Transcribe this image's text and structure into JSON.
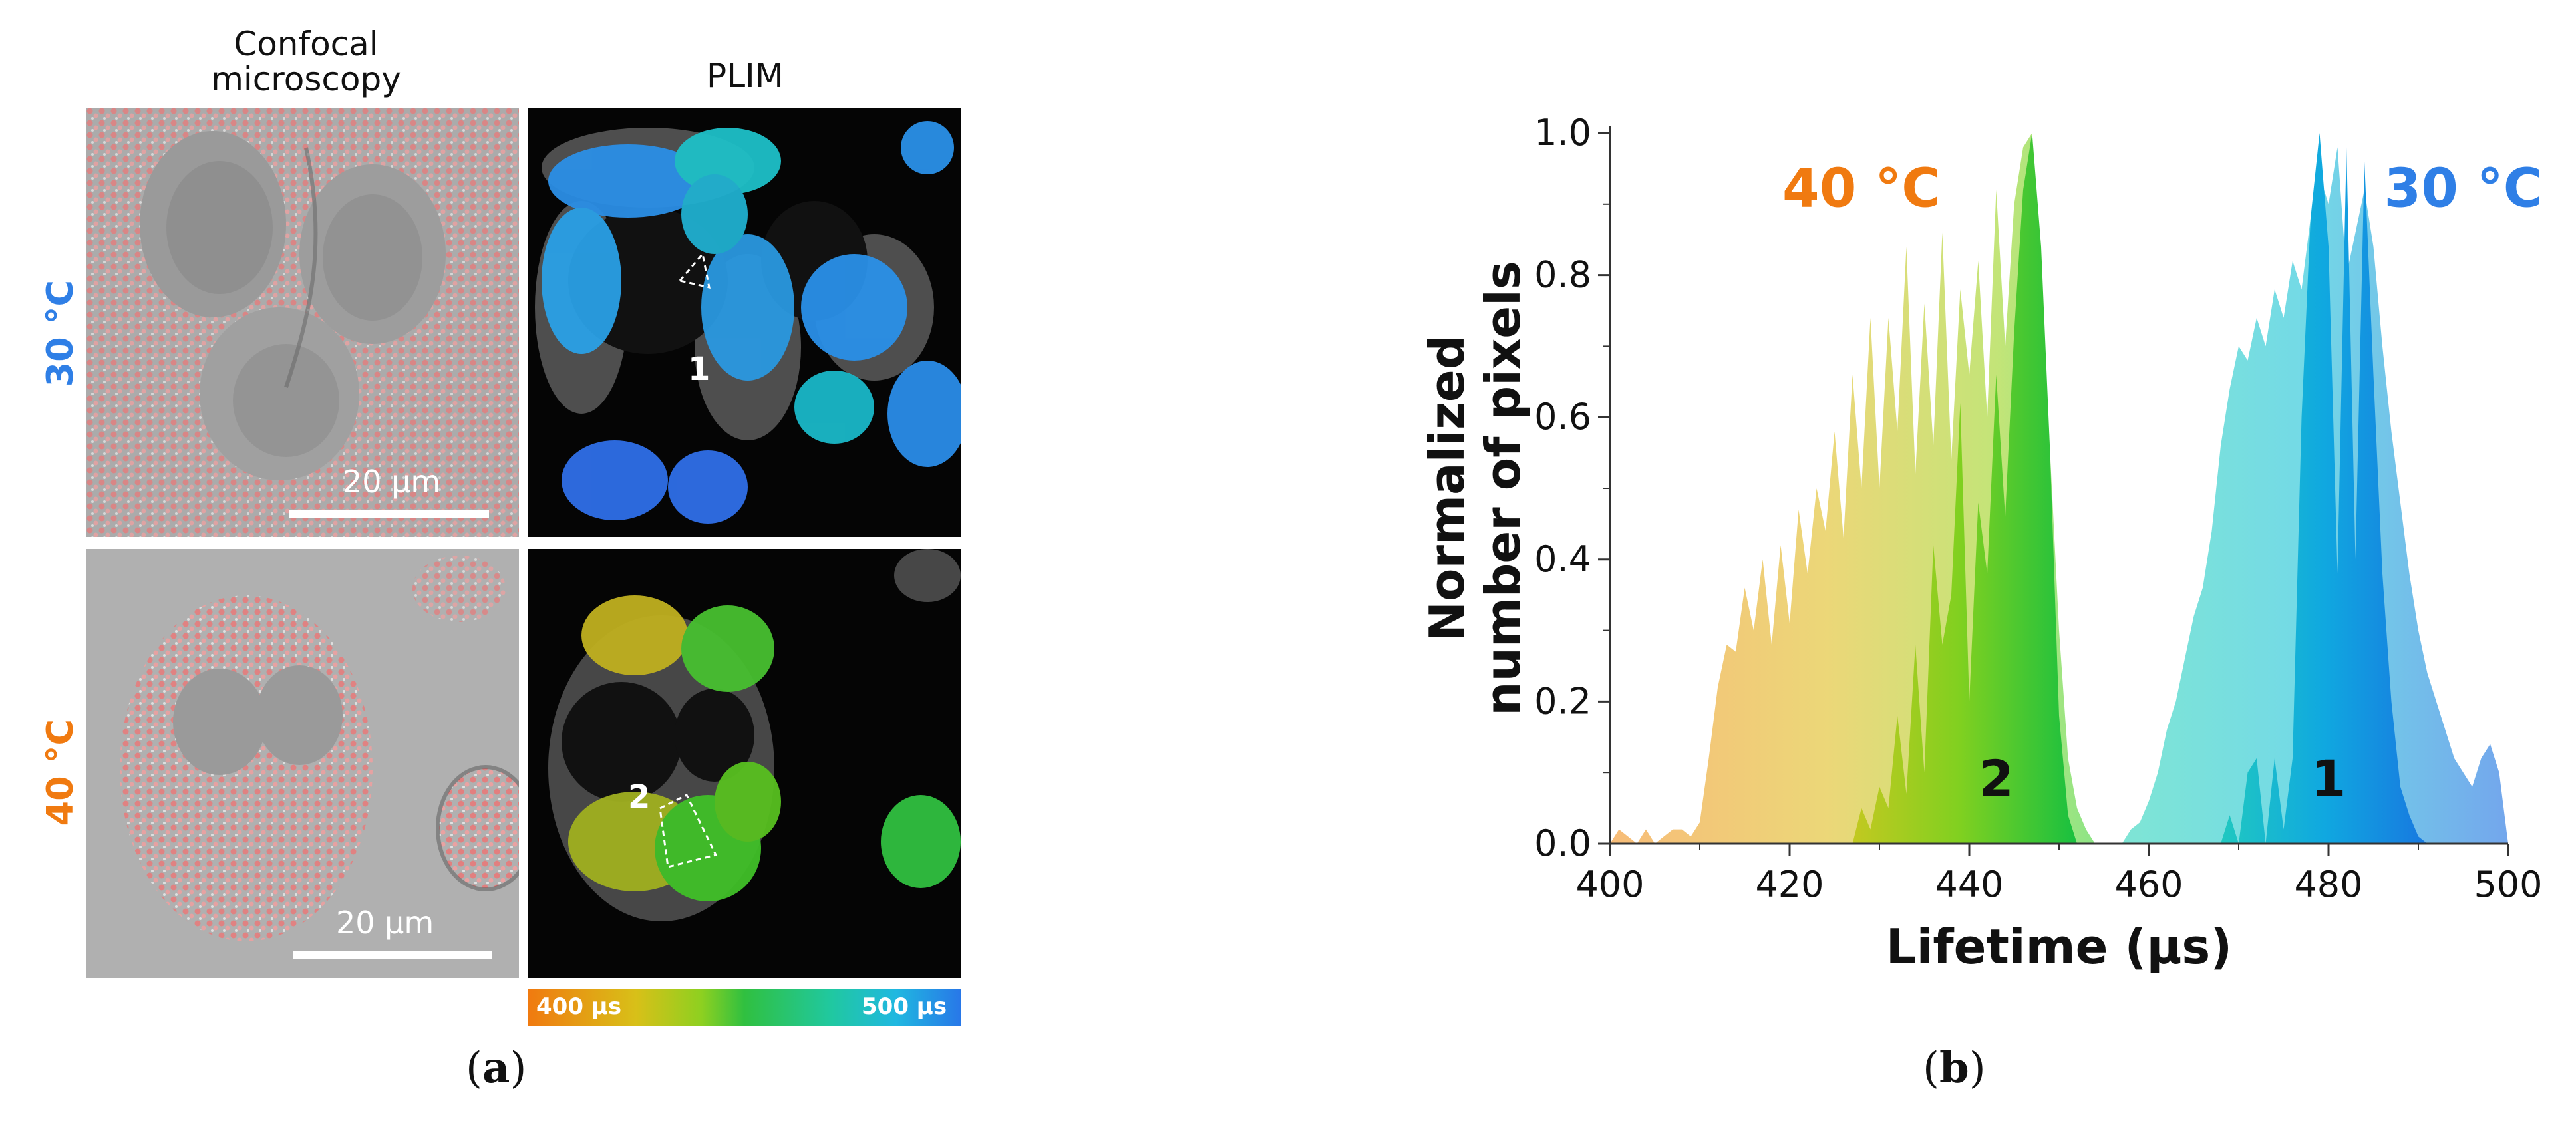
{
  "panel_a": {
    "col_headers": [
      "Confocal\nmicroscopy",
      "PLIM"
    ],
    "row_labels": [
      {
        "text": "30 °C",
        "color": "#2f7fe6"
      },
      {
        "text": "40 °C",
        "color": "#f07a10"
      }
    ],
    "scale_bar": "20 µm",
    "region_labels": [
      "1",
      "2"
    ],
    "colorbar": {
      "min_label": "400 µs",
      "max_label": "500 µs"
    }
  },
  "captions": {
    "a": "a",
    "b": "b"
  },
  "chart_data": {
    "type": "area",
    "title": "",
    "xlabel": "Lifetime (µs)",
    "ylabel_lines": [
      "Normalized",
      "number of pixels"
    ],
    "xlim": [
      400,
      500
    ],
    "ylim": [
      0,
      1.0
    ],
    "xticks": [
      400,
      420,
      440,
      460,
      480,
      500
    ],
    "yticks": [
      0.0,
      0.2,
      0.4,
      0.6,
      0.8,
      1.0
    ],
    "ytick_labels": [
      "0.0",
      "0.2",
      "0.4",
      "0.6",
      "0.8",
      "1.0"
    ],
    "annotations": [
      {
        "text": "40 °C",
        "x": 428,
        "y": 0.92,
        "color": "#f07a10"
      },
      {
        "text": "30 °C",
        "x": 495,
        "y": 0.92,
        "color": "#2f7fe6"
      },
      {
        "text": "2",
        "x": 443,
        "y": 0.09,
        "color": "#111111"
      },
      {
        "text": "1",
        "x": 480,
        "y": 0.09,
        "color": "#111111"
      }
    ],
    "series": [
      {
        "name": "40 °C",
        "fill": "gradient-orange-green",
        "x": [
          400,
          401,
          402,
          403,
          404,
          405,
          406,
          407,
          408,
          409,
          410,
          411,
          412,
          413,
          414,
          415,
          416,
          417,
          418,
          419,
          420,
          421,
          422,
          423,
          424,
          425,
          426,
          427,
          428,
          429,
          430,
          431,
          432,
          433,
          434,
          435,
          436,
          437,
          438,
          439,
          440,
          441,
          442,
          443,
          444,
          445,
          446,
          447,
          448,
          449,
          450,
          451,
          452,
          453,
          454
        ],
        "values": [
          0.0,
          0.02,
          0.01,
          0.0,
          0.02,
          0.0,
          0.01,
          0.02,
          0.02,
          0.01,
          0.03,
          0.12,
          0.22,
          0.28,
          0.27,
          0.36,
          0.3,
          0.4,
          0.28,
          0.42,
          0.31,
          0.47,
          0.38,
          0.5,
          0.44,
          0.58,
          0.43,
          0.66,
          0.5,
          0.74,
          0.5,
          0.74,
          0.58,
          0.84,
          0.52,
          0.76,
          0.56,
          0.86,
          0.54,
          0.78,
          0.66,
          0.82,
          0.6,
          0.92,
          0.7,
          0.9,
          0.98,
          1.0,
          0.8,
          0.55,
          0.3,
          0.12,
          0.05,
          0.02,
          0.0
        ]
      },
      {
        "name": "region 2",
        "fill": "gradient-green",
        "x": [
          426,
          427,
          428,
          429,
          430,
          431,
          432,
          433,
          434,
          435,
          436,
          437,
          438,
          439,
          440,
          441,
          442,
          443,
          444,
          445,
          446,
          447,
          448,
          449,
          450,
          451,
          452
        ],
        "values": [
          0.0,
          0.0,
          0.05,
          0.02,
          0.08,
          0.05,
          0.18,
          0.07,
          0.28,
          0.1,
          0.42,
          0.28,
          0.35,
          0.62,
          0.2,
          0.48,
          0.38,
          0.66,
          0.46,
          0.72,
          0.92,
          1.0,
          0.84,
          0.55,
          0.18,
          0.04,
          0.0
        ]
      },
      {
        "name": "30 °C",
        "fill": "gradient-cyan-blue",
        "x": [
          455,
          456,
          457,
          458,
          459,
          460,
          461,
          462,
          463,
          464,
          465,
          466,
          467,
          468,
          469,
          470,
          471,
          472,
          473,
          474,
          475,
          476,
          477,
          478,
          479,
          480,
          481,
          482,
          483,
          484,
          485,
          486,
          487,
          488,
          489,
          490,
          491,
          492,
          493,
          494,
          495,
          496,
          497,
          498,
          499,
          500
        ],
        "values": [
          0.0,
          0.0,
          0.0,
          0.02,
          0.03,
          0.06,
          0.1,
          0.16,
          0.2,
          0.26,
          0.32,
          0.36,
          0.44,
          0.56,
          0.64,
          0.7,
          0.68,
          0.74,
          0.7,
          0.78,
          0.74,
          0.82,
          0.78,
          0.88,
          0.94,
          0.9,
          0.98,
          0.8,
          0.86,
          0.92,
          0.84,
          0.7,
          0.58,
          0.48,
          0.38,
          0.3,
          0.24,
          0.2,
          0.16,
          0.12,
          0.1,
          0.08,
          0.12,
          0.14,
          0.1,
          0.0
        ]
      },
      {
        "name": "region 1",
        "fill": "gradient-blue",
        "x": [
          468,
          469,
          470,
          471,
          472,
          473,
          474,
          475,
          476,
          477,
          478,
          479,
          480,
          481,
          482,
          483,
          484,
          485,
          486,
          487,
          488,
          489,
          490,
          491
        ],
        "values": [
          0.0,
          0.04,
          0.0,
          0.1,
          0.12,
          0.0,
          0.12,
          0.02,
          0.12,
          0.6,
          0.88,
          1.0,
          0.84,
          0.38,
          0.98,
          0.4,
          0.96,
          0.66,
          0.38,
          0.2,
          0.08,
          0.04,
          0.01,
          0.0
        ]
      }
    ]
  }
}
